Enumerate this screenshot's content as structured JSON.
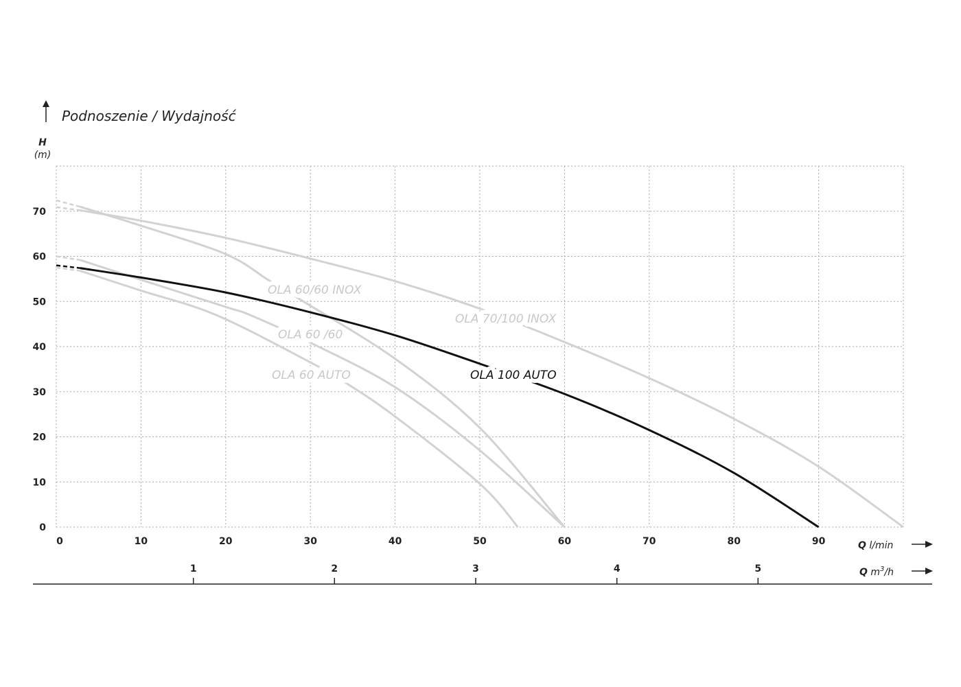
{
  "chart_data": {
    "type": "line",
    "title": "Podnoszenie / Wydajność",
    "ylabel": "H",
    "ylabel_unit": "(m)",
    "xlabel": "Q l/min",
    "x2label": "Q m³/h",
    "x2label_parts": {
      "q": "Q",
      "unit_base": "m",
      "unit_sup": "3",
      "unit_tail": "/h"
    },
    "xlabel_parts": {
      "q": "Q",
      "unit": "l/min"
    },
    "xlim": [
      0,
      100
    ],
    "ylim": [
      0,
      80
    ],
    "xticks": [
      "0",
      "10",
      "20",
      "30",
      "40",
      "50",
      "60",
      "70",
      "80",
      "90"
    ],
    "yticks": [
      "0",
      "10",
      "20",
      "30",
      "40",
      "50",
      "60",
      "70"
    ],
    "x2ticks": [
      {
        "label": "1",
        "lpm": 16.67
      },
      {
        "label": "2",
        "lpm": 33.33
      },
      {
        "label": "3",
        "lpm": 50
      },
      {
        "label": "4",
        "lpm": 66.67
      },
      {
        "label": "5",
        "lpm": 83.33
      }
    ],
    "grid": true,
    "series": [
      {
        "name": "OLA 60/60 INOX",
        "color": "#d2d2d2",
        "dashed_start": [
          0,
          72.4
        ],
        "points": [
          [
            2.8,
            71
          ],
          [
            10,
            66.8
          ],
          [
            20,
            60.5
          ],
          [
            25,
            54.8
          ],
          [
            29,
            50.2
          ],
          [
            40,
            37.3
          ],
          [
            50,
            22
          ],
          [
            60,
            0
          ]
        ]
      },
      {
        "name": "OLA 70/100 INOX",
        "color": "#d2d2d2",
        "dashed_start": [
          0,
          70.9
        ],
        "points": [
          [
            2.8,
            70.2
          ],
          [
            10,
            67.9
          ],
          [
            20,
            64.1
          ],
          [
            30,
            59.5
          ],
          [
            40,
            54.5
          ],
          [
            50,
            48.4
          ],
          [
            60,
            41
          ],
          [
            70,
            33
          ],
          [
            80,
            24
          ],
          [
            90,
            13.4
          ],
          [
            100,
            0
          ]
        ]
      },
      {
        "name": "OLA 60 /60",
        "color": "#d2d2d2",
        "dashed_start": [
          0,
          60
        ],
        "points": [
          [
            2.8,
            59.2
          ],
          [
            10,
            54.8
          ],
          [
            20,
            48.8
          ],
          [
            23,
            46.9
          ],
          [
            30.4,
            40.5
          ],
          [
            40,
            31
          ],
          [
            50,
            17
          ],
          [
            60,
            0
          ]
        ]
      },
      {
        "name": "OLA 60 AUTO",
        "color": "#d2d2d2",
        "dashed_start": [
          0,
          57.5
        ],
        "points": [
          [
            2.8,
            56.8
          ],
          [
            10,
            52.4
          ],
          [
            19,
            46.9
          ],
          [
            30.6,
            35.9
          ],
          [
            34.4,
            31.7
          ],
          [
            40,
            24.5
          ],
          [
            50,
            9.6
          ],
          [
            54.5,
            0
          ]
        ]
      },
      {
        "name": "OLA 100 AUTO",
        "color": "#111111",
        "dashed_start": [
          0,
          58
        ],
        "points": [
          [
            2.8,
            57.4
          ],
          [
            10,
            55.3
          ],
          [
            20,
            52
          ],
          [
            30,
            47.6
          ],
          [
            40,
            42.5
          ],
          [
            50,
            36.2
          ],
          [
            60,
            29.5
          ],
          [
            70,
            21.5
          ],
          [
            80,
            12
          ],
          [
            90,
            0
          ]
        ]
      }
    ]
  }
}
